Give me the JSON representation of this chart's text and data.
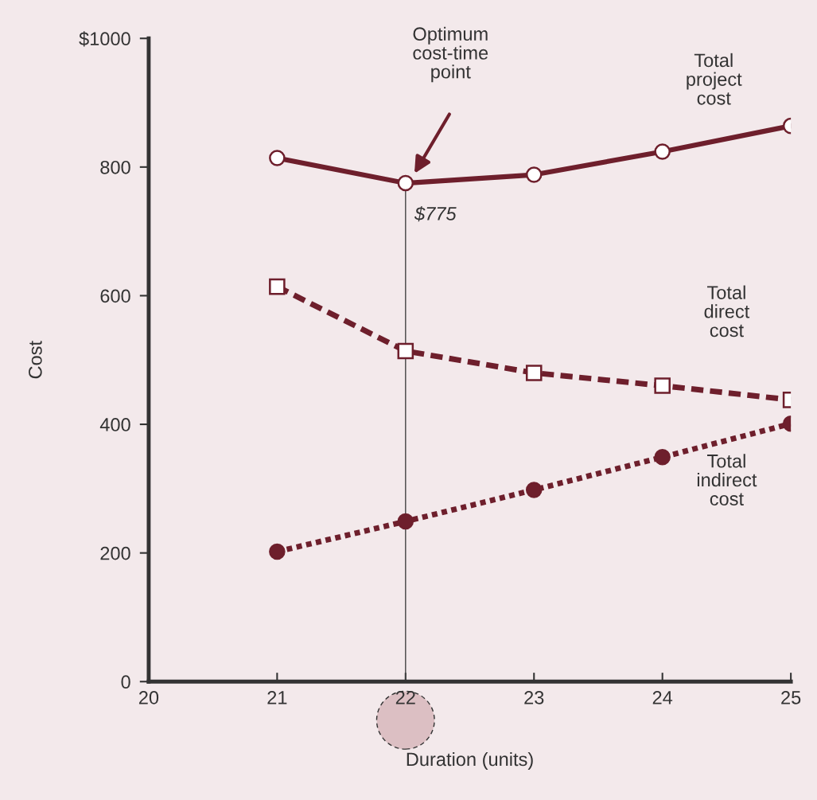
{
  "chart_data": {
    "type": "line",
    "xlabel": "Duration (units)",
    "ylabel": "Cost",
    "x": [
      21,
      22,
      23,
      24,
      25
    ],
    "xlim": [
      20,
      25
    ],
    "xticks": [
      20,
      21,
      22,
      23,
      24,
      25
    ],
    "ylim": [
      0,
      1000
    ],
    "yticks": [
      0,
      200,
      400,
      600,
      {
        "value": 800,
        "label": "800"
      },
      {
        "value": 1000,
        "label": "$1000"
      }
    ],
    "grid": false,
    "legend": false,
    "series": [
      {
        "name": "Total project cost",
        "color": "#6e1f2c",
        "values": [
          814,
          775,
          788,
          824,
          864
        ],
        "marker": "circle",
        "line_style": "solid"
      },
      {
        "name": "Total direct cost",
        "color": "#6e1f2c",
        "values": [
          614,
          514,
          480,
          460,
          438
        ],
        "marker": "square",
        "line_style": "dashed"
      },
      {
        "name": "Total indirect cost",
        "color": "#6e1f2c",
        "values": [
          202,
          249,
          298,
          349,
          401
        ],
        "marker": "circle",
        "line_style": "dotted"
      }
    ],
    "ref_lines": [
      {
        "axis": "x",
        "value": 22,
        "color": "#444444"
      }
    ],
    "annotations": [
      "Optimum\ncost-time\npoint",
      {
        "text": "$775",
        "x": 22,
        "y": 775
      }
    ]
  }
}
